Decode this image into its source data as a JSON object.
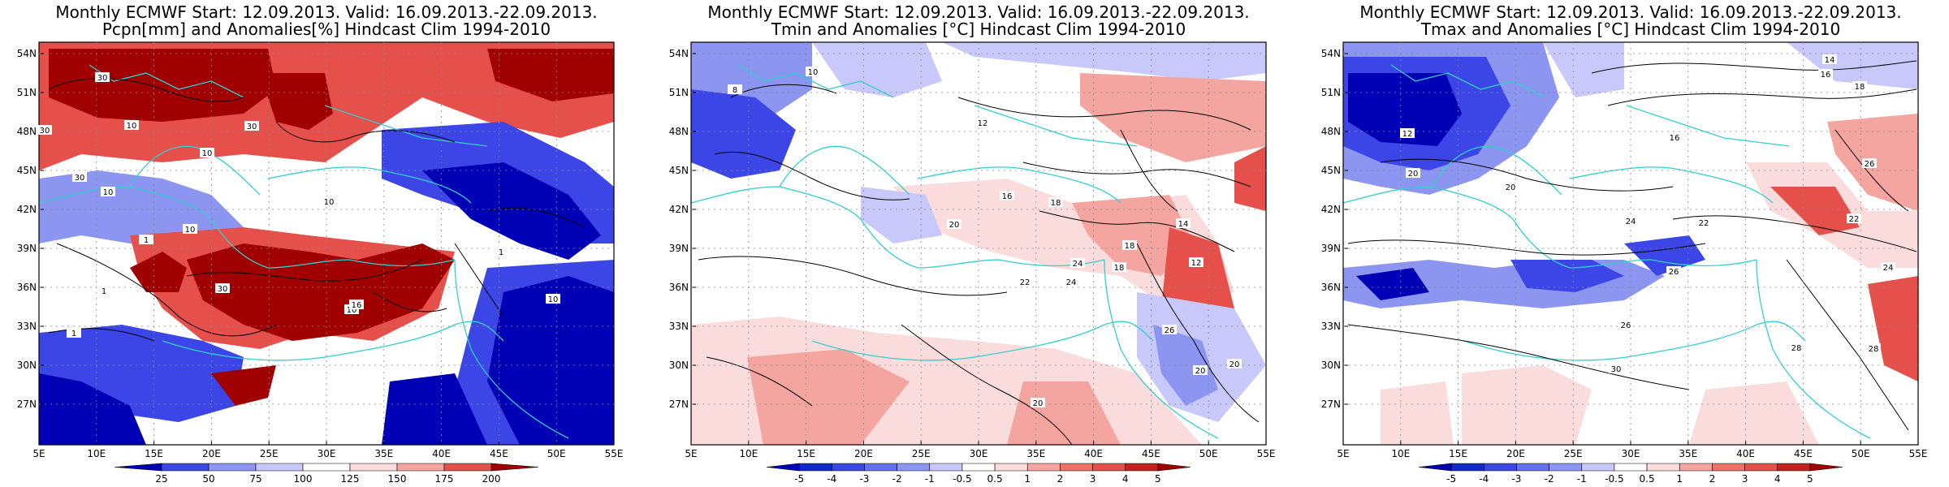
{
  "colors": {
    "deep_blue": "#0000b4",
    "mid_blue": "#3c46e6",
    "light_blue": "#8c96f0",
    "pale_blue": "#c8c8fa",
    "white": "#ffffff",
    "pale_red": "#fadcdc",
    "light_red": "#f5a5a0",
    "mid_red": "#e6504b",
    "deep_red": "#a00000",
    "coast": "#30d0d0",
    "contour": "#000000"
  },
  "longitude_labels": [
    "5E",
    "10E",
    "15E",
    "20E",
    "25E",
    "30E",
    "35E",
    "40E",
    "45E",
    "50E",
    "55E"
  ],
  "latitude_labels": [
    "54N",
    "51N",
    "48N",
    "45N",
    "42N",
    "39N",
    "36N",
    "33N",
    "30N",
    "27N"
  ],
  "panels": [
    {
      "title_line1": "Monthly ECMWF Start: 12.09.2013. Valid: 16.09.2013.-22.09.2013.",
      "title_line2": "Pcpn[mm] and Anomalies[%] Hindcast Clim 1994-2010",
      "colorbar_ticks": [
        "25",
        "50",
        "75",
        "100",
        "125",
        "150",
        "175",
        "200"
      ],
      "contour_labels": [
        "30",
        "30",
        "10",
        "30",
        "10",
        "30",
        "10",
        "10",
        "1",
        "1",
        "10",
        "30",
        "10",
        "16",
        "10",
        "1",
        "1"
      ]
    },
    {
      "title_line1": "Monthly ECMWF Start: 12.09.2013. Valid: 16.09.2013.-22.09.2013.",
      "title_line2": "Tmin and Anomalies [°C] Hindcast Clim 1994-2010",
      "colorbar_ticks": [
        "-5",
        "-4",
        "-3",
        "-2",
        "-1",
        "-0.5",
        "0.5",
        "1",
        "2",
        "3",
        "4",
        "5"
      ],
      "contour_labels": [
        "10",
        "8",
        "12",
        "16",
        "18",
        "20",
        "22",
        "24",
        "20",
        "26",
        "12",
        "14",
        "18",
        "24",
        "20",
        "18",
        "20"
      ]
    },
    {
      "title_line1": "Monthly ECMWF Start: 12.09.2013. Valid: 16.09.2013.-22.09.2013.",
      "title_line2": "Tmax and Anomalies [°C] Hindcast Clim 1994-2010",
      "colorbar_ticks": [
        "-5",
        "-4",
        "-3",
        "-2",
        "-1",
        "-0.5",
        "0.5",
        "1",
        "2",
        "3",
        "4",
        "5"
      ],
      "contour_labels": [
        "14",
        "16",
        "18",
        "12",
        "20",
        "22",
        "24",
        "26",
        "28",
        "30",
        "26",
        "24",
        "16",
        "20",
        "28",
        "22",
        "26"
      ]
    }
  ]
}
